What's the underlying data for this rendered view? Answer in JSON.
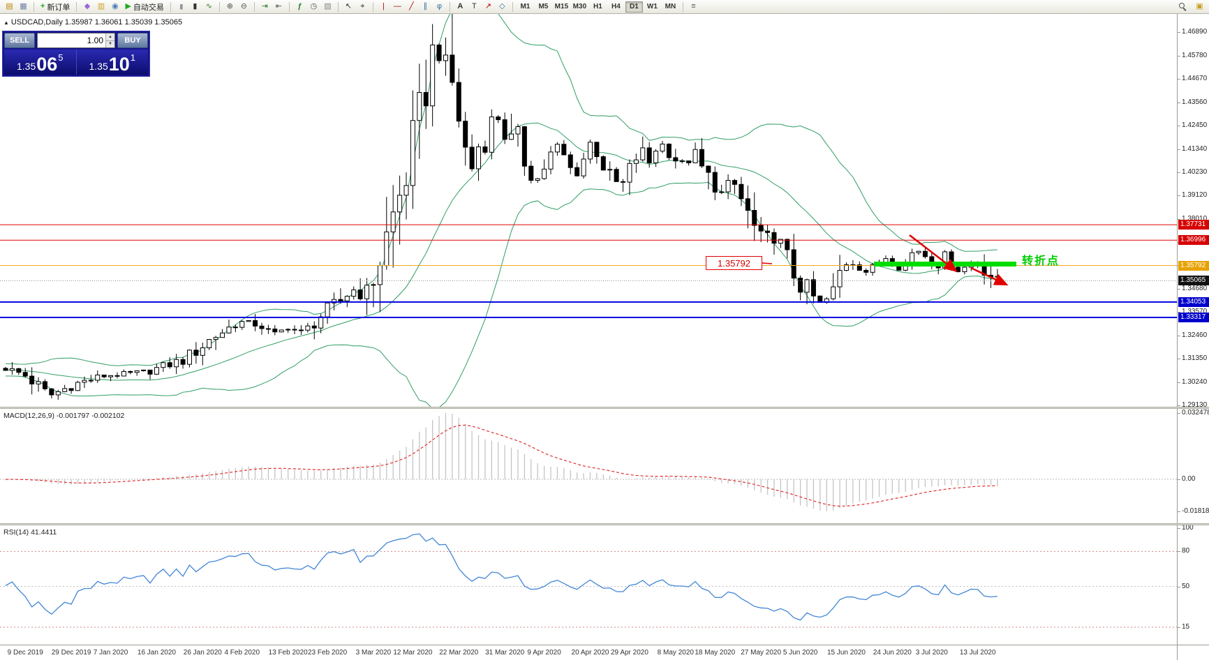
{
  "toolbar": {
    "icons": {
      "new_chart": "▤",
      "profiles": "▦",
      "new_order_plus": "+",
      "metaeditor": "◆",
      "market_watch": "▥",
      "navigator": "◉",
      "autotrade_play": "▶",
      "bar_chart": "|||",
      "candle_chart": "▮",
      "line_chart": "∿",
      "zoom_in": "⊕",
      "zoom_out": "⊖",
      "auto_scroll": "⇥",
      "chart_shift": "⇤",
      "indicators": "ƒ",
      "periods": "◷",
      "templates": "▧",
      "cursor": "↖",
      "crosshair": "⌖",
      "vertical_line": "|",
      "horizontal_line": "—",
      "trendline": "╱",
      "channel": "∥",
      "fibonacci": "φ",
      "text": "A",
      "text_label": "T",
      "arrows": "↗",
      "shapes": "◇",
      "objects_list": "≡",
      "ideas": "▣"
    },
    "new_order_label": "新订单",
    "autotrade_label": "自动交易",
    "timeframes": [
      "M1",
      "M5",
      "M15",
      "M30",
      "H1",
      "H4",
      "D1",
      "W1",
      "MN"
    ],
    "active_timeframe": "D1"
  },
  "chart": {
    "collapse_arrow": "▲",
    "symbol_info": "USDCAD,Daily  1.35987 1.36061 1.35039 1.35065"
  },
  "one_click": {
    "sell_label": "SELL",
    "buy_label": "BUY",
    "volume": "1.00",
    "spin_up": "▲",
    "spin_down": "▼",
    "sell_price": {
      "base": "1.35",
      "pips": "06",
      "pt": "5"
    },
    "buy_price": {
      "base": "1.35",
      "pips": "10",
      "pt": "1"
    }
  },
  "colors": {
    "bollinger": "#2f9e63",
    "candle_up": "#ffffff",
    "candle_down": "#000000",
    "candle_border": "#000000",
    "macd_hist": "#c4c4c4",
    "macd_signal": "#e03030",
    "macd_zero": "#b8b8b8",
    "rsi_line": "#4286d6",
    "rsi_level": "#cc8888",
    "rsi_mid": "#c0c0c0",
    "annotation_red": "#e00000",
    "annotation_green": "#00dd00"
  },
  "levels": [
    {
      "price": 1.37731,
      "color": "#e00000",
      "width": 1
    },
    {
      "price": 1.36996,
      "color": "#e00000",
      "width": 1
    },
    {
      "price": 1.35792,
      "color": "#eda821",
      "width": 1
    },
    {
      "price": 1.35065,
      "color": "#888888",
      "width": 1,
      "dash": "1 2"
    },
    {
      "price": 1.34053,
      "color": "#0000e0",
      "width": 2
    },
    {
      "price": 1.33317,
      "color": "#0000e0",
      "width": 2
    }
  ],
  "price_axis": {
    "labels": [
      "1.46890",
      "1.45780",
      "1.44670",
      "1.43560",
      "1.42450",
      "1.41340",
      "1.40230",
      "1.39120",
      "1.38010",
      "1.36900",
      "1.35790",
      "1.34680",
      "1.33570",
      "1.32460",
      "1.31350",
      "1.30240",
      "1.29130"
    ],
    "tags": [
      {
        "text": "1.37731",
        "bg": "#d60000"
      },
      {
        "text": "1.36996",
        "bg": "#d60000"
      },
      {
        "text": "1.35792",
        "bg": "#e8a200"
      },
      {
        "text": "1.35065",
        "bg": "#111111"
      },
      {
        "text": "1.34053",
        "bg": "#0000cc"
      },
      {
        "text": "1.33317",
        "bg": "#0000cc"
      }
    ]
  },
  "annotations": {
    "price_box_label": "1.35792",
    "turning_point_label": "转折点"
  },
  "macd": {
    "label": "MACD(12,26,9) -0.001797 -0.002102",
    "scale": [
      "0.032478",
      "0.00",
      "-0.018182"
    ]
  },
  "rsi": {
    "label": "RSI(14) 41.4411",
    "scale": [
      "100",
      "80",
      "50",
      "15"
    ]
  },
  "dates": [
    "9 Dec 2019",
    "29 Dec 2019",
    "7 Jan 2020",
    "16 Jan 2020",
    "26 Jan 2020",
    "4 Feb 2020",
    "13 Feb 2020",
    "23 Feb 2020",
    "3 Mar 2020",
    "12 Mar 2020",
    "22 Mar 2020",
    "31 Mar 2020",
    "9 Apr 2020",
    "20 Apr 2020",
    "29 Apr 2020",
    "8 May 2020",
    "18 May 2020",
    "27 May 2020",
    "5 Jun 2020",
    "15 Jun 2020",
    "24 Jun 2020",
    "3 Jul 2020",
    "13 Jul 2020"
  ],
  "series": {
    "anchors": [
      [
        0,
        1.309
      ],
      [
        0.02,
        1.3055
      ],
      [
        0.045,
        1.296
      ],
      [
        0.07,
        1.3015
      ],
      [
        0.1,
        1.3055
      ],
      [
        0.14,
        1.307
      ],
      [
        0.18,
        1.313
      ],
      [
        0.21,
        1.324
      ],
      [
        0.235,
        1.331
      ],
      [
        0.255,
        1.33
      ],
      [
        0.27,
        1.325
      ],
      [
        0.285,
        1.3285
      ],
      [
        0.3,
        1.3255
      ],
      [
        0.315,
        1.333
      ],
      [
        0.335,
        1.34
      ],
      [
        0.35,
        1.3465
      ],
      [
        0.365,
        1.344
      ],
      [
        0.378,
        1.362
      ],
      [
        0.39,
        1.38
      ],
      [
        0.4,
        1.395
      ],
      [
        0.41,
        1.412
      ],
      [
        0.42,
        1.43
      ],
      [
        0.428,
        1.456
      ],
      [
        0.433,
        1.464
      ],
      [
        0.44,
        1.452
      ],
      [
        0.45,
        1.445
      ],
      [
        0.46,
        1.422
      ],
      [
        0.468,
        1.401
      ],
      [
        0.477,
        1.415
      ],
      [
        0.486,
        1.42
      ],
      [
        0.493,
        1.433
      ],
      [
        0.5,
        1.423
      ],
      [
        0.508,
        1.415
      ],
      [
        0.516,
        1.419
      ],
      [
        0.524,
        1.406
      ],
      [
        0.535,
        1.398
      ],
      [
        0.547,
        1.408
      ],
      [
        0.555,
        1.416
      ],
      [
        0.563,
        1.41
      ],
      [
        0.574,
        1.4
      ],
      [
        0.583,
        1.409
      ],
      [
        0.59,
        1.417
      ],
      [
        0.598,
        1.41
      ],
      [
        0.61,
        1.399
      ],
      [
        0.622,
        1.396
      ],
      [
        0.633,
        1.408
      ],
      [
        0.641,
        1.412
      ],
      [
        0.649,
        1.407
      ],
      [
        0.66,
        1.417
      ],
      [
        0.671,
        1.41
      ],
      [
        0.683,
        1.406
      ],
      [
        0.695,
        1.411
      ],
      [
        0.703,
        1.403
      ],
      [
        0.711,
        1.398
      ],
      [
        0.722,
        1.392
      ],
      [
        0.733,
        1.398
      ],
      [
        0.741,
        1.39
      ],
      [
        0.753,
        1.377
      ],
      [
        0.764,
        1.369
      ],
      [
        0.776,
        1.373
      ],
      [
        0.788,
        1.36
      ],
      [
        0.8,
        1.35
      ],
      [
        0.812,
        1.344
      ],
      [
        0.823,
        1.339
      ],
      [
        0.834,
        1.344
      ],
      [
        0.842,
        1.356
      ],
      [
        0.85,
        1.3615
      ],
      [
        0.858,
        1.3575
      ],
      [
        0.868,
        1.3548
      ],
      [
        0.878,
        1.358
      ],
      [
        0.888,
        1.362
      ],
      [
        0.897,
        1.3575
      ],
      [
        0.906,
        1.3572
      ],
      [
        0.914,
        1.364
      ],
      [
        0.923,
        1.3655
      ],
      [
        0.931,
        1.36
      ],
      [
        0.939,
        1.3582
      ],
      [
        0.947,
        1.3625
      ],
      [
        0.955,
        1.3572
      ],
      [
        0.962,
        1.3552
      ],
      [
        0.97,
        1.3582
      ],
      [
        0.978,
        1.3612
      ],
      [
        0.986,
        1.356
      ],
      [
        1,
        1.3507
      ]
    ]
  }
}
